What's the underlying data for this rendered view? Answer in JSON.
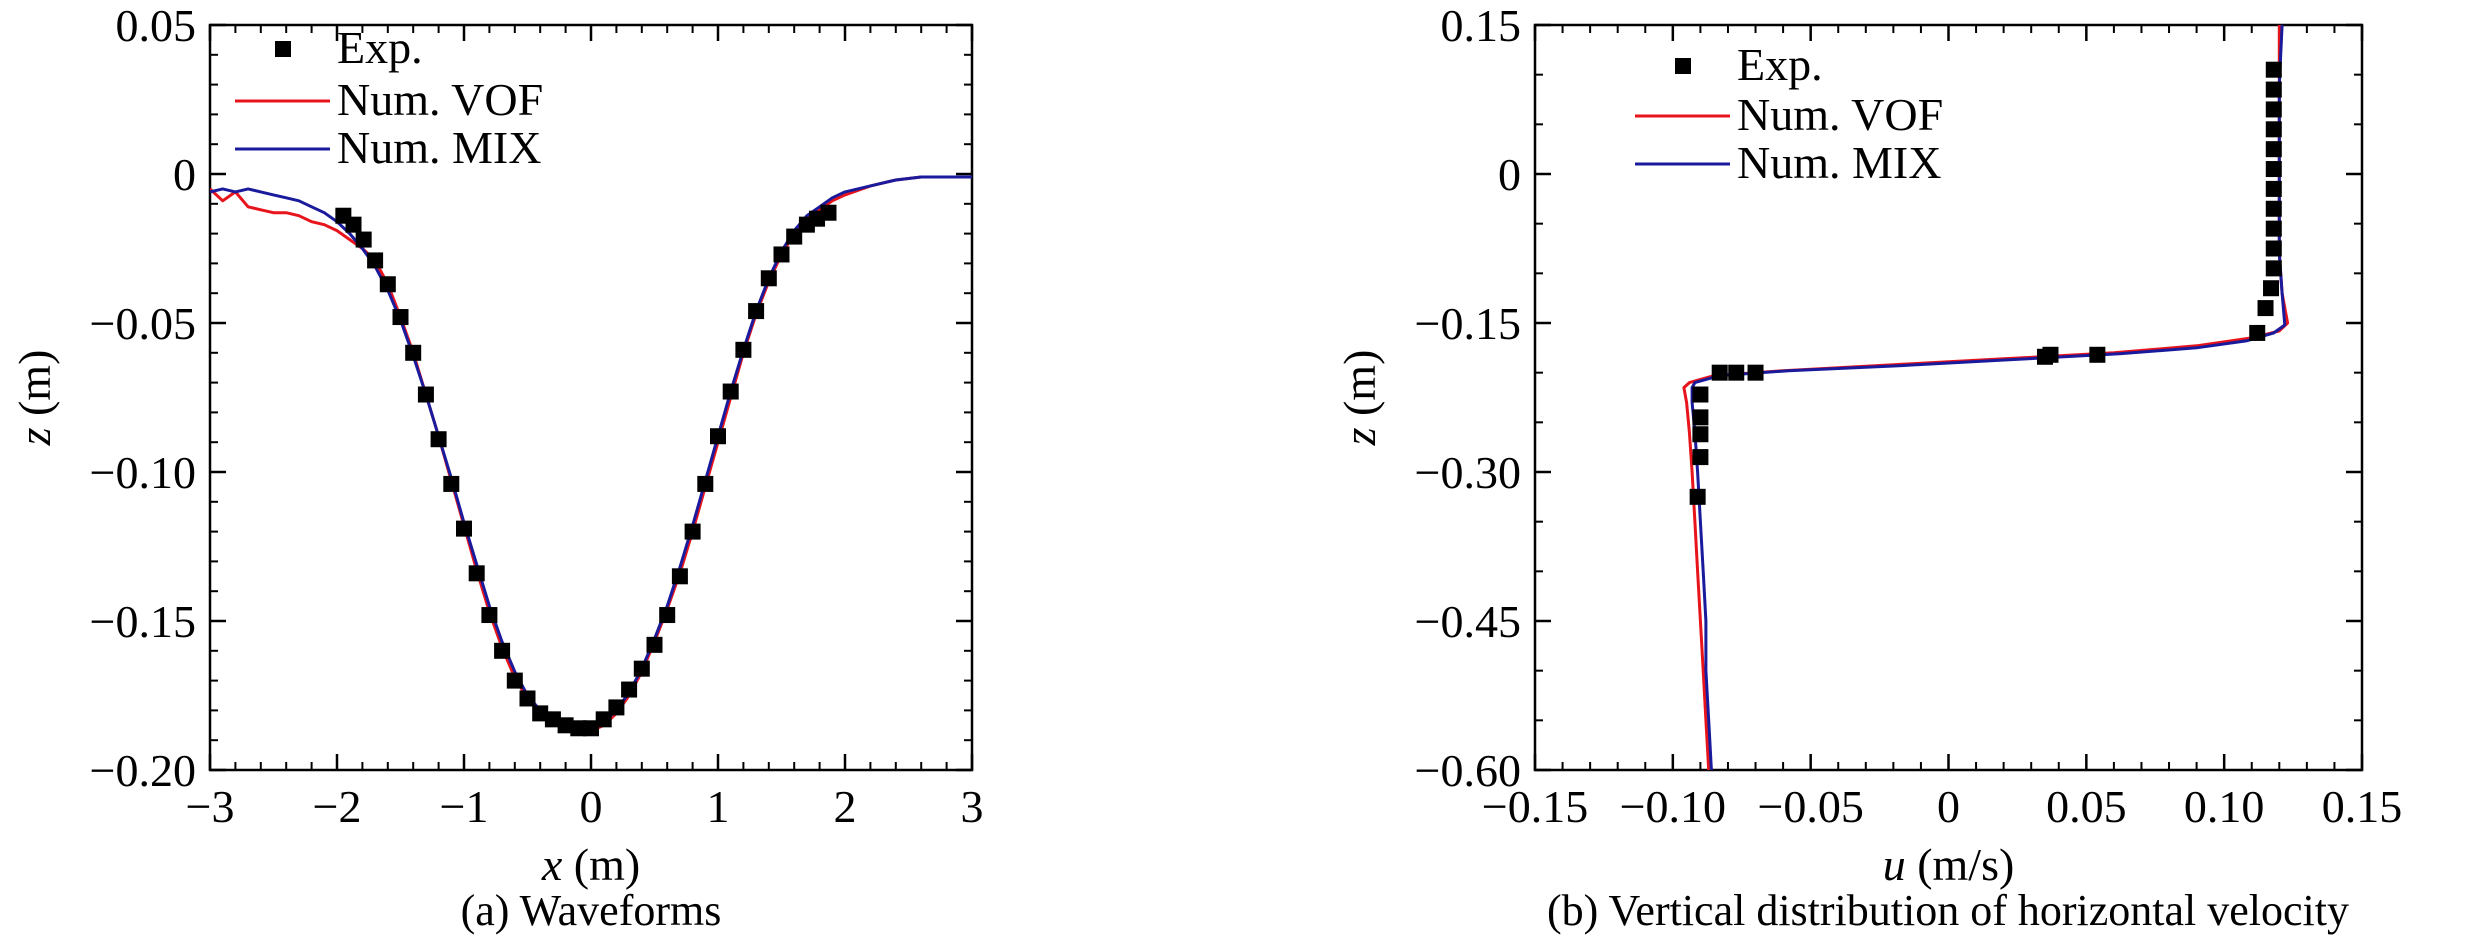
{
  "chart_data": [
    {
      "type": "line",
      "caption": "(a) Waveforms",
      "xlabel_var": "x",
      "xlabel_unit": " (m)",
      "ylabel_var": "z",
      "ylabel_unit": " (m)",
      "xlim": [
        -3,
        3
      ],
      "ylim": [
        -0.2,
        0.05
      ],
      "xticks": [
        -3,
        -2,
        -1,
        0,
        1,
        2,
        3
      ],
      "xtick_labels": [
        "−3",
        "−2",
        "−1",
        "0",
        "1",
        "2",
        "3"
      ],
      "yticks": [
        0.05,
        0,
        -0.05,
        -0.1,
        -0.15,
        -0.2
      ],
      "ytick_labels": [
        "0.05",
        "0",
        "−0.05",
        "−0.10",
        "−0.15",
        "−0.20"
      ],
      "grid": false,
      "legend_position": "top-left",
      "series": [
        {
          "name": "Exp.",
          "style": "markers",
          "color": "#000000",
          "x": [
            -1.95,
            -1.87,
            -1.79,
            -1.7,
            -1.6,
            -1.5,
            -1.4,
            -1.3,
            -1.2,
            -1.1,
            -1.0,
            -0.9,
            -0.8,
            -0.7,
            -0.6,
            -0.5,
            -0.4,
            -0.3,
            -0.2,
            -0.1,
            0.0,
            0.1,
            0.2,
            0.3,
            0.4,
            0.5,
            0.6,
            0.7,
            0.8,
            0.9,
            1.0,
            1.1,
            1.2,
            1.3,
            1.4,
            1.5,
            1.6,
            1.7,
            1.78,
            1.87
          ],
          "y": [
            -0.014,
            -0.017,
            -0.022,
            -0.029,
            -0.037,
            -0.048,
            -0.06,
            -0.074,
            -0.089,
            -0.104,
            -0.119,
            -0.134,
            -0.148,
            -0.16,
            -0.17,
            -0.176,
            -0.181,
            -0.183,
            -0.185,
            -0.186,
            -0.186,
            -0.183,
            -0.179,
            -0.173,
            -0.166,
            -0.158,
            -0.148,
            -0.135,
            -0.12,
            -0.104,
            -0.088,
            -0.073,
            -0.059,
            -0.046,
            -0.035,
            -0.027,
            -0.021,
            -0.017,
            -0.015,
            -0.013
          ]
        },
        {
          "name": "Num. VOF",
          "style": "line",
          "color": "#e8141c",
          "x": [
            -3.0,
            -2.9,
            -2.8,
            -2.7,
            -2.6,
            -2.5,
            -2.4,
            -2.3,
            -2.2,
            -2.1,
            -2.0,
            -1.9,
            -1.8,
            -1.7,
            -1.6,
            -1.5,
            -1.4,
            -1.3,
            -1.2,
            -1.1,
            -1.0,
            -0.9,
            -0.8,
            -0.7,
            -0.6,
            -0.5,
            -0.4,
            -0.3,
            -0.2,
            -0.1,
            0.0,
            0.1,
            0.2,
            0.3,
            0.4,
            0.5,
            0.6,
            0.7,
            0.8,
            0.9,
            1.0,
            1.1,
            1.2,
            1.3,
            1.4,
            1.5,
            1.6,
            1.7,
            1.8,
            1.9,
            2.0,
            2.2,
            2.4,
            2.6,
            2.8,
            3.0
          ],
          "y": [
            -0.005,
            -0.009,
            -0.006,
            -0.011,
            -0.012,
            -0.013,
            -0.013,
            -0.014,
            -0.016,
            -0.017,
            -0.019,
            -0.022,
            -0.025,
            -0.029,
            -0.037,
            -0.048,
            -0.06,
            -0.074,
            -0.088,
            -0.103,
            -0.118,
            -0.133,
            -0.147,
            -0.159,
            -0.169,
            -0.176,
            -0.181,
            -0.184,
            -0.186,
            -0.187,
            -0.187,
            -0.185,
            -0.181,
            -0.175,
            -0.167,
            -0.157,
            -0.146,
            -0.134,
            -0.12,
            -0.105,
            -0.09,
            -0.075,
            -0.06,
            -0.047,
            -0.036,
            -0.027,
            -0.02,
            -0.015,
            -0.012,
            -0.009,
            -0.007,
            -0.004,
            -0.002,
            -0.001,
            -0.001,
            -0.001
          ]
        },
        {
          "name": "Num. MIX",
          "style": "line",
          "color": "#1a1a9c",
          "x": [
            -3.0,
            -2.9,
            -2.8,
            -2.7,
            -2.6,
            -2.5,
            -2.4,
            -2.3,
            -2.2,
            -2.1,
            -2.0,
            -1.9,
            -1.8,
            -1.7,
            -1.6,
            -1.5,
            -1.4,
            -1.3,
            -1.2,
            -1.1,
            -1.0,
            -0.9,
            -0.8,
            -0.7,
            -0.6,
            -0.5,
            -0.4,
            -0.3,
            -0.2,
            -0.1,
            0.0,
            0.1,
            0.2,
            0.3,
            0.4,
            0.5,
            0.6,
            0.7,
            0.8,
            0.9,
            1.0,
            1.1,
            1.2,
            1.3,
            1.4,
            1.5,
            1.6,
            1.7,
            1.8,
            1.9,
            2.0,
            2.2,
            2.4,
            2.6,
            2.8,
            3.0
          ],
          "y": [
            -0.006,
            -0.005,
            -0.006,
            -0.005,
            -0.006,
            -0.007,
            -0.008,
            -0.009,
            -0.011,
            -0.013,
            -0.016,
            -0.02,
            -0.025,
            -0.031,
            -0.039,
            -0.049,
            -0.061,
            -0.074,
            -0.088,
            -0.102,
            -0.117,
            -0.131,
            -0.145,
            -0.157,
            -0.167,
            -0.175,
            -0.18,
            -0.183,
            -0.185,
            -0.186,
            -0.186,
            -0.184,
            -0.18,
            -0.174,
            -0.166,
            -0.156,
            -0.145,
            -0.132,
            -0.118,
            -0.103,
            -0.088,
            -0.073,
            -0.059,
            -0.046,
            -0.035,
            -0.026,
            -0.019,
            -0.014,
            -0.011,
            -0.008,
            -0.006,
            -0.004,
            -0.002,
            -0.001,
            -0.001,
            -0.001
          ]
        }
      ]
    },
    {
      "type": "line",
      "caption": "(b) Vertical distribution of horizontal velocity",
      "xlabel_var": "u",
      "xlabel_unit": " (m/s)",
      "ylabel_var": "z",
      "ylabel_unit": " (m)",
      "xlim": [
        -0.15,
        0.15
      ],
      "ylim": [
        -0.6,
        0.15
      ],
      "xticks": [
        -0.15,
        -0.1,
        -0.05,
        0,
        0.05,
        0.1,
        0.15
      ],
      "xtick_labels": [
        "−0.15",
        "−0.10",
        "−0.05",
        "0",
        "0.05",
        "0.10",
        "0.15"
      ],
      "yticks": [
        0.15,
        0,
        -0.15,
        -0.3,
        -0.45,
        -0.6
      ],
      "ytick_labels": [
        "0.15",
        "0",
        "−0.15",
        "−0.30",
        "−0.45",
        "−0.60"
      ],
      "grid": false,
      "legend_position": "top-left",
      "series": [
        {
          "name": "Exp.",
          "style": "markers",
          "color": "#000000",
          "x": [
            0.118,
            0.118,
            0.118,
            0.118,
            0.118,
            0.118,
            0.118,
            0.118,
            0.118,
            0.118,
            0.118,
            0.117,
            0.115,
            0.112,
            0.054,
            0.037,
            0.035,
            -0.07,
            -0.077,
            -0.083,
            -0.09,
            -0.09,
            -0.09,
            -0.09,
            -0.091
          ],
          "y": [
            0.105,
            0.085,
            0.065,
            0.045,
            0.025,
            0.005,
            -0.015,
            -0.035,
            -0.055,
            -0.075,
            -0.095,
            -0.115,
            -0.135,
            -0.16,
            -0.182,
            -0.182,
            -0.184,
            -0.2,
            -0.2,
            -0.2,
            -0.222,
            -0.245,
            -0.262,
            -0.285,
            -0.325
          ]
        },
        {
          "name": "Num. VOF",
          "style": "line",
          "color": "#e8141c",
          "x": [
            -0.087,
            -0.088,
            -0.089,
            -0.09,
            -0.091,
            -0.092,
            -0.093,
            -0.094,
            -0.095,
            -0.096,
            -0.094,
            -0.085,
            -0.06,
            -0.02,
            0.02,
            0.06,
            0.09,
            0.11,
            0.12,
            0.123,
            0.121,
            0.12,
            0.12,
            0.12,
            0.12,
            0.12
          ],
          "y": [
            -0.6,
            -0.55,
            -0.5,
            -0.45,
            -0.4,
            -0.35,
            -0.3,
            -0.26,
            -0.23,
            -0.215,
            -0.21,
            -0.203,
            -0.198,
            -0.192,
            -0.186,
            -0.18,
            -0.173,
            -0.165,
            -0.158,
            -0.15,
            -0.12,
            -0.08,
            -0.03,
            0.03,
            0.09,
            0.15
          ]
        },
        {
          "name": "Num. MIX",
          "style": "line",
          "color": "#1a1a9c",
          "x": [
            -0.086,
            -0.087,
            -0.088,
            -0.088,
            -0.089,
            -0.09,
            -0.091,
            -0.092,
            -0.093,
            -0.093,
            -0.092,
            -0.083,
            -0.058,
            -0.018,
            0.022,
            0.062,
            0.09,
            0.108,
            0.118,
            0.122,
            0.121,
            0.12,
            0.12,
            0.12,
            0.12,
            0.121
          ],
          "y": [
            -0.6,
            -0.55,
            -0.5,
            -0.45,
            -0.4,
            -0.35,
            -0.3,
            -0.26,
            -0.23,
            -0.215,
            -0.21,
            -0.203,
            -0.198,
            -0.193,
            -0.187,
            -0.181,
            -0.175,
            -0.168,
            -0.16,
            -0.152,
            -0.12,
            -0.08,
            -0.03,
            0.03,
            0.09,
            0.15
          ]
        }
      ]
    }
  ]
}
